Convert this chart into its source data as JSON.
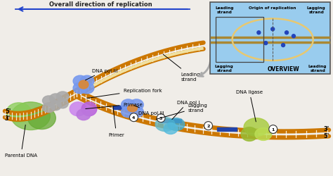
{
  "bg_color": "#f0ede8",
  "title_text": "Overall direction of replication",
  "title_color": "#222222",
  "arrow_color": "#2244cc",
  "overview_bg": "#99ccee",
  "overview_border": "#888888",
  "dna_outer_color": "#cc7700",
  "dna_inner_color": "#e8c870",
  "dna_notch_color": "#ffffff",
  "leading_strand_color": "#f0e0a0",
  "primer_color": "#2244aa",
  "dna_pol3_blue": "#7799ee",
  "dna_pol3_orange": "#dd8833",
  "primase_purple": "#bb66dd",
  "green_blob": "#66aa44",
  "gray_blob": "#999999",
  "teal_blob": "#55aacc",
  "ligase_green": "#99cc44",
  "circle_bg": "#ffffff",
  "circle_border": "#333333",
  "label_fs": 5.0,
  "labels": {
    "parental_dna": "Parental DNA",
    "dna_pol3_top": "DNA pol III",
    "replication_fork": "Replication fork",
    "primase": "Primase",
    "primer": "Primer",
    "dna_pol3_bottom": "DNA pol III",
    "lagging_strand": "Lagging\nstrand",
    "leading_strand": "Leading\nstrand",
    "dna_pol1": "DNA pol I",
    "dna_ligase": "DNA ligase",
    "five_prime_left": "5'",
    "three_prime_left": "3'",
    "three_prime_right": "3'",
    "five_prime_right": "5'",
    "overview_title": "OVERVIEW",
    "leading_tl": "Leading\nstrand",
    "lagging_tr": "Lagging\nstrand",
    "origin": "Origin of replication",
    "lagging_bl": "Lagging\nstrand",
    "leading_br": "Leading\nstrand"
  }
}
